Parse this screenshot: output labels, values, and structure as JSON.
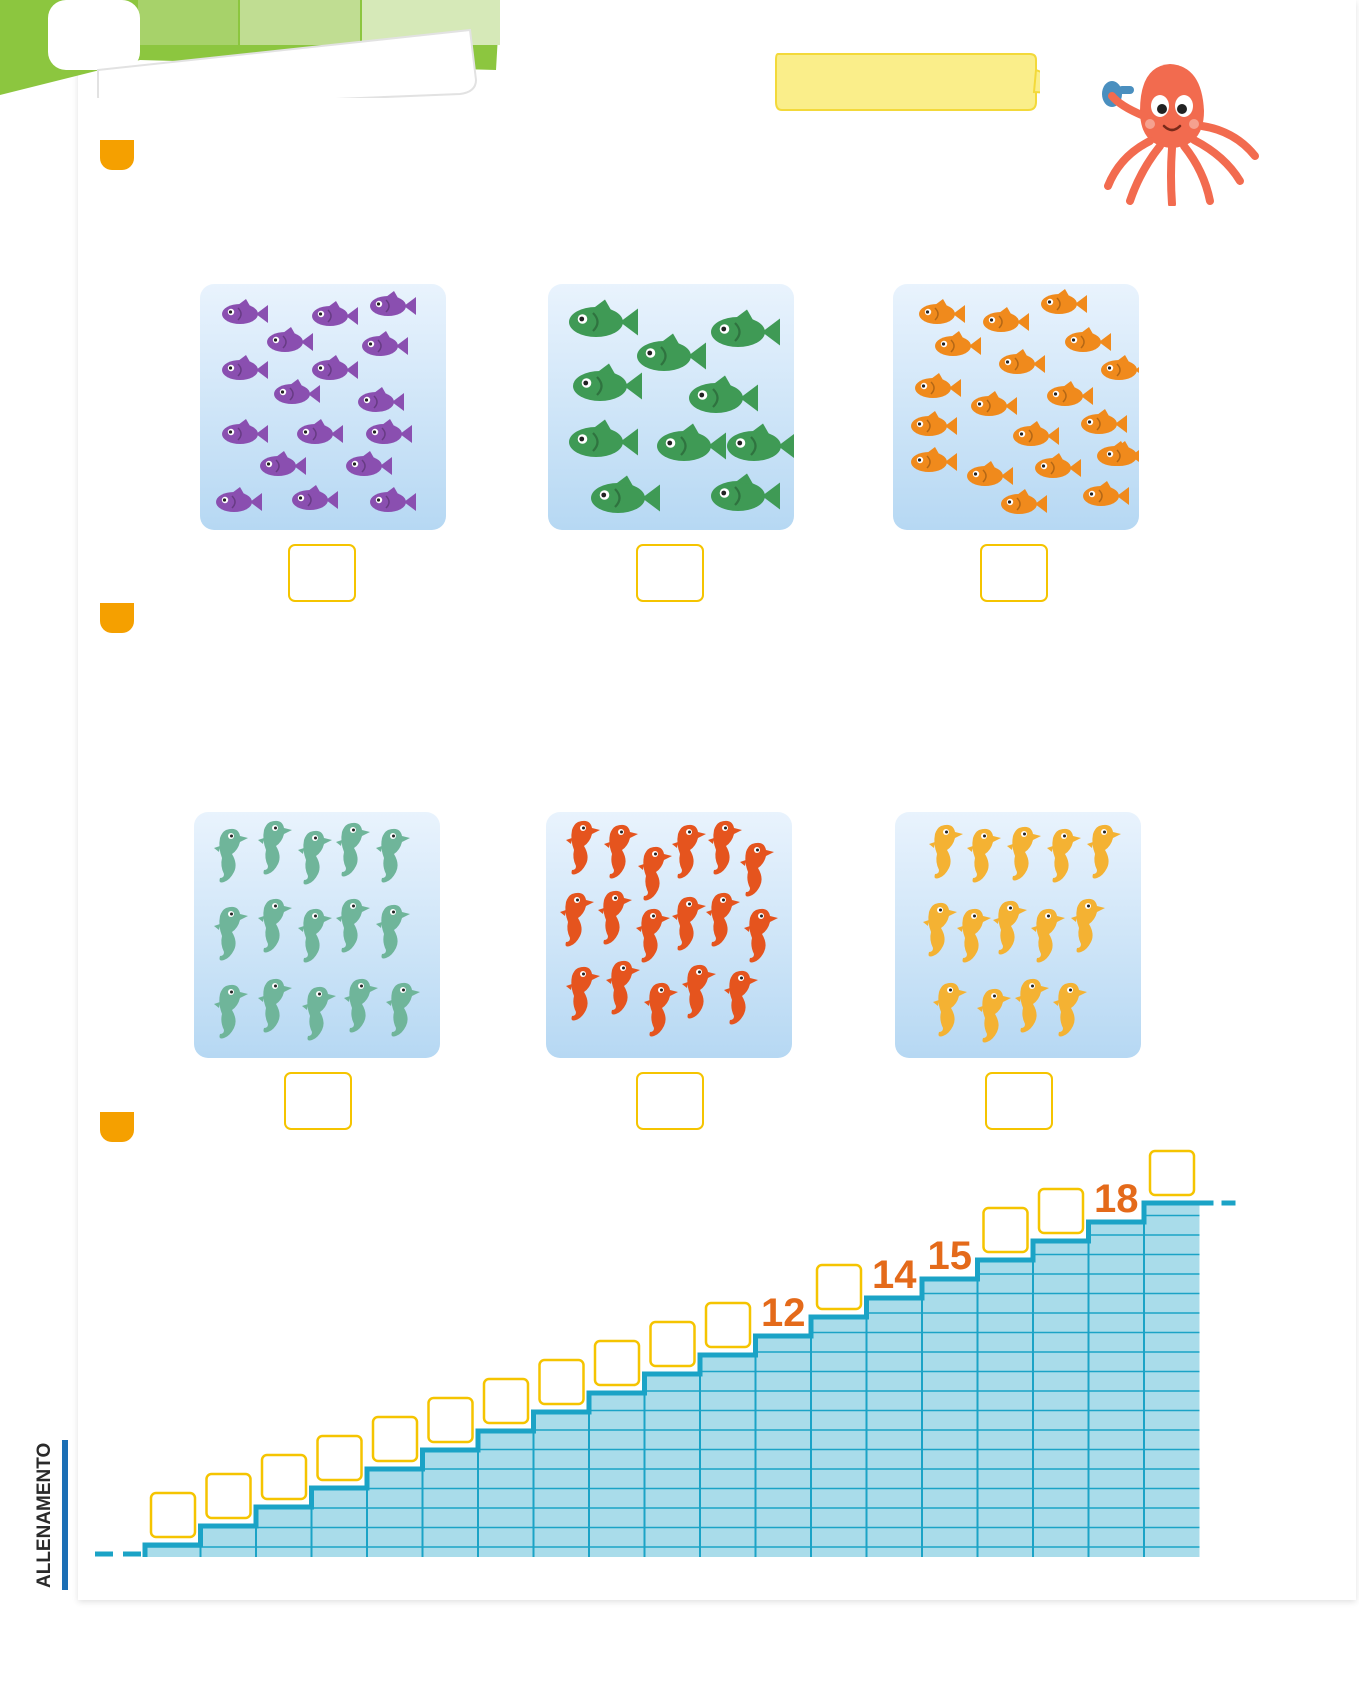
{
  "page": {
    "side_label": "ALLENAMENTO"
  },
  "exercises": [
    {
      "id": 1,
      "kind": "fish-count",
      "panels": [
        {
          "color": "#8a4fb0",
          "creature": "fish",
          "count": 18
        },
        {
          "color": "#3f9a55",
          "creature": "fish",
          "count": 10
        },
        {
          "color": "#f08a1c",
          "creature": "fish",
          "count": 22
        }
      ]
    },
    {
      "id": 2,
      "kind": "seahorse-count",
      "panels": [
        {
          "color": "#6fb59a",
          "creature": "seahorse",
          "count": 15
        },
        {
          "color": "#e5541e",
          "creature": "seahorse",
          "count": 17
        },
        {
          "color": "#f4b233",
          "creature": "seahorse",
          "count": 14
        }
      ]
    },
    {
      "id": 3,
      "kind": "number-staircase",
      "steps": [
        "",
        "",
        "",
        "",
        "",
        "",
        "",
        "",
        "",
        "",
        "",
        "12",
        "",
        "14",
        "15",
        "",
        "",
        "18",
        ""
      ]
    }
  ],
  "colors": {
    "accent": "#f5a000",
    "box_border": "#f5c400",
    "stair_fill": "#a9dcea",
    "stair_line": "#1ba3c6",
    "number_color": "#e46a1a",
    "corner_green": "#8cc63f",
    "speech_yellow": "#faee8a"
  }
}
